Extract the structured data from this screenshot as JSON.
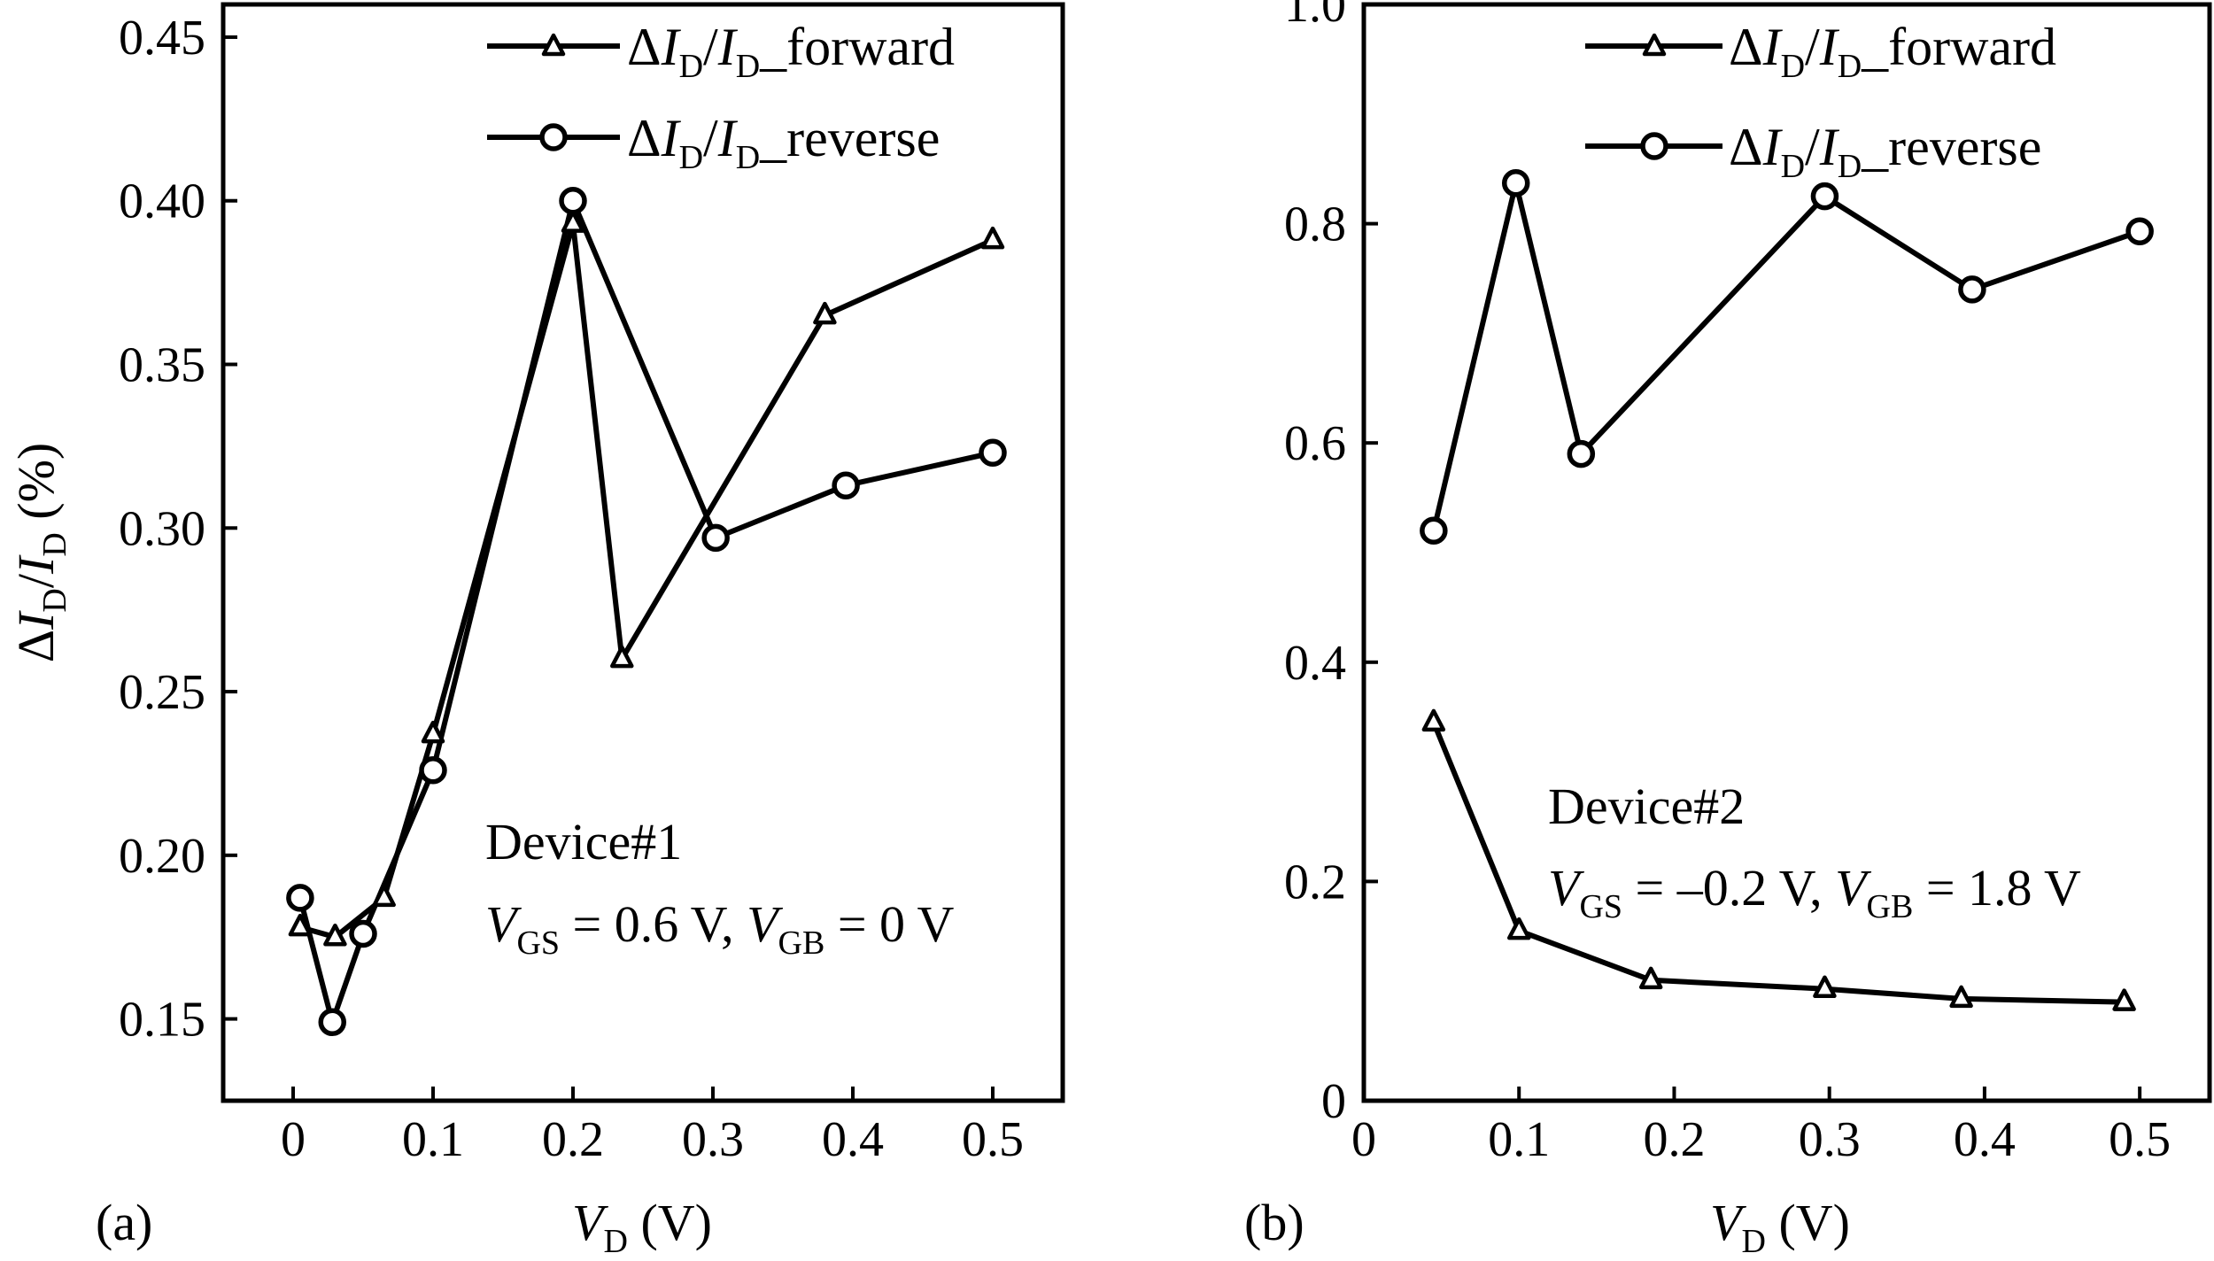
{
  "chart_data": [
    {
      "type": "line",
      "panel_label": "(a)",
      "xlabel": {
        "main": "V",
        "sub": "D",
        "unit": "(V)"
      },
      "ylabel": {
        "delta": "Δ",
        "i1": "I",
        "s1": "D",
        "slash": "/",
        "i2": "I",
        "s2": "D",
        "unit": "(%)"
      },
      "xlim": [
        -0.05,
        0.55
      ],
      "ylim": [
        0.125,
        0.46
      ],
      "xticks": [
        "0",
        "0.1",
        "0.2",
        "0.3",
        "0.4",
        "0.5"
      ],
      "xtick_values": [
        0,
        0.1,
        0.2,
        0.3,
        0.4,
        0.5
      ],
      "yticks": [
        "0.15",
        "0.20",
        "0.25",
        "0.30",
        "0.35",
        "0.40",
        "0.45"
      ],
      "ytick_values": [
        0.15,
        0.2,
        0.25,
        0.3,
        0.35,
        0.4,
        0.45
      ],
      "legend_position": "top-right",
      "series": [
        {
          "name": "ΔID/ID_forward",
          "legend": {
            "delta": "Δ",
            "i1": "I",
            "s1": "D",
            "slash": "/",
            "i2": "I",
            "s2": "D",
            "suffix": "forward"
          },
          "marker": "triangle",
          "x": [
            0.005,
            0.03,
            0.065,
            0.1,
            0.2,
            0.235,
            0.38,
            0.5
          ],
          "y": [
            0.178,
            0.175,
            0.187,
            0.237,
            0.393,
            0.26,
            0.365,
            0.388
          ]
        },
        {
          "name": "ΔID/ID_reverse",
          "legend": {
            "delta": "Δ",
            "i1": "I",
            "s1": "D",
            "slash": "/",
            "i2": "I",
            "s2": "D",
            "suffix": "reverse"
          },
          "marker": "circle",
          "x": [
            0.005,
            0.028,
            0.05,
            0.1,
            0.2,
            0.302,
            0.395,
            0.5
          ],
          "y": [
            0.187,
            0.149,
            0.176,
            0.226,
            0.4,
            0.297,
            0.313,
            0.323
          ]
        }
      ],
      "annotation": {
        "device": "Device#1",
        "v1": "V",
        "s1": "GS",
        "v1_value": " = 0.6 V, ",
        "v2": "V",
        "s2": "GB",
        "v2_value": " = 0 V"
      }
    },
    {
      "type": "line",
      "panel_label": "(b)",
      "xlabel": {
        "main": "V",
        "sub": "D",
        "unit": "(V)"
      },
      "xlim": [
        0,
        0.545
      ],
      "ylim": [
        0,
        1.0
      ],
      "xticks": [
        "0",
        "0.1",
        "0.2",
        "0.3",
        "0.4",
        "0.5"
      ],
      "xtick_values": [
        0,
        0.1,
        0.2,
        0.3,
        0.4,
        0.5
      ],
      "yticks": [
        "0",
        "0.2",
        "0.4",
        "0.6",
        "0.8",
        "1.0"
      ],
      "ytick_values": [
        0,
        0.2,
        0.4,
        0.6,
        0.8,
        1.0
      ],
      "legend_position": "top-right",
      "series": [
        {
          "name": "ΔID/ID_forward",
          "legend": {
            "delta": "Δ",
            "i1": "I",
            "s1": "D",
            "slash": "/",
            "i2": "I",
            "s2": "D",
            "suffix": "forward"
          },
          "marker": "triangle",
          "x": [
            0.045,
            0.1,
            0.185,
            0.297,
            0.385,
            0.49
          ],
          "y": [
            0.345,
            0.155,
            0.11,
            0.102,
            0.093,
            0.09
          ]
        },
        {
          "name": "ΔID/ID_reverse",
          "legend": {
            "delta": "Δ",
            "i1": "I",
            "s1": "D",
            "slash": "/",
            "i2": "I",
            "s2": "D",
            "suffix": "reverse"
          },
          "marker": "circle",
          "x": [
            0.045,
            0.098,
            0.14,
            0.297,
            0.392,
            0.5
          ],
          "y": [
            0.52,
            0.837,
            0.59,
            0.825,
            0.74,
            0.793
          ]
        }
      ],
      "annotation": {
        "device": "Device#2",
        "v1": "V",
        "s1": "GS",
        "v1_value": " = –0.2 V, ",
        "v2": "V",
        "s2": "GB",
        "v2_value": " = 1.8 V"
      }
    }
  ]
}
